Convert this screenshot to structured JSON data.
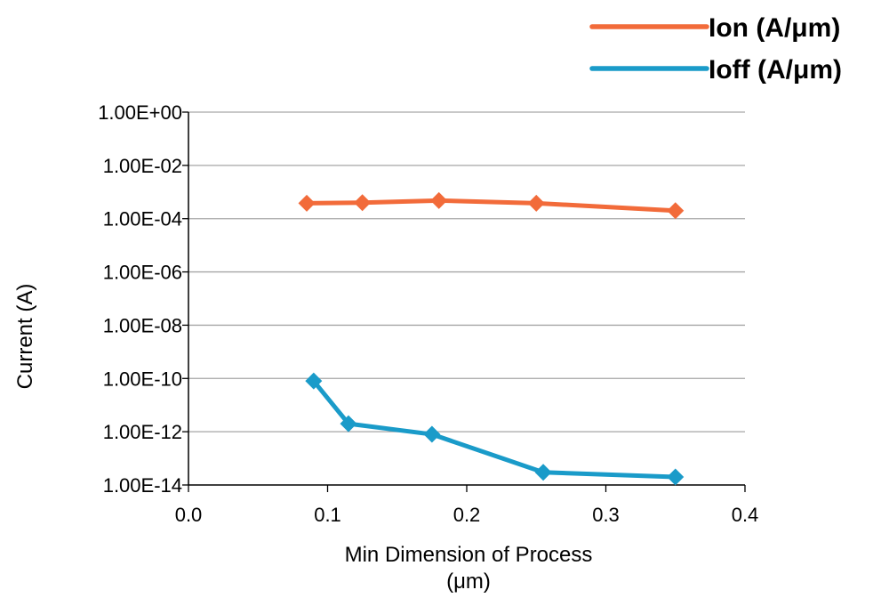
{
  "chart_data": {
    "type": "line",
    "xlabel_lines": [
      "Min Dimension of Process",
      "(μm)"
    ],
    "ylabel": "Current (A)",
    "xlim": [
      0,
      0.4
    ],
    "x_ticks": [
      0.0,
      0.1,
      0.2,
      0.3,
      0.4
    ],
    "x_tick_labels": [
      "0.0",
      "0.1",
      "0.2",
      "0.3",
      "0.4"
    ],
    "y_scale": "log",
    "ylim": [
      1e-14,
      1
    ],
    "y_ticks": [
      1,
      0.01,
      0.0001,
      1e-06,
      1e-08,
      1e-10,
      1e-12,
      1e-14
    ],
    "y_tick_labels": [
      "1.00E+00",
      "1.00E-02",
      "1.00E-04",
      "1.00E-06",
      "1.00E-08",
      "1.00E-10",
      "1.00E-12",
      "1.00E-14"
    ],
    "grid": "horizontal",
    "legend_position": "top-right",
    "series": [
      {
        "name": "Ion (A/μm)",
        "color": "#F26B3A",
        "marker": "diamond",
        "x": [
          0.085,
          0.125,
          0.18,
          0.25,
          0.35
        ],
        "y": [
          0.00038,
          0.0004,
          0.00048,
          0.00038,
          0.0002
        ]
      },
      {
        "name": "Ioff (A/μm)",
        "color": "#1A9BC9",
        "marker": "diamond",
        "x": [
          0.09,
          0.115,
          0.175,
          0.255,
          0.35
        ],
        "y": [
          8e-11,
          2e-12,
          8e-13,
          3e-14,
          2e-14
        ]
      }
    ]
  }
}
